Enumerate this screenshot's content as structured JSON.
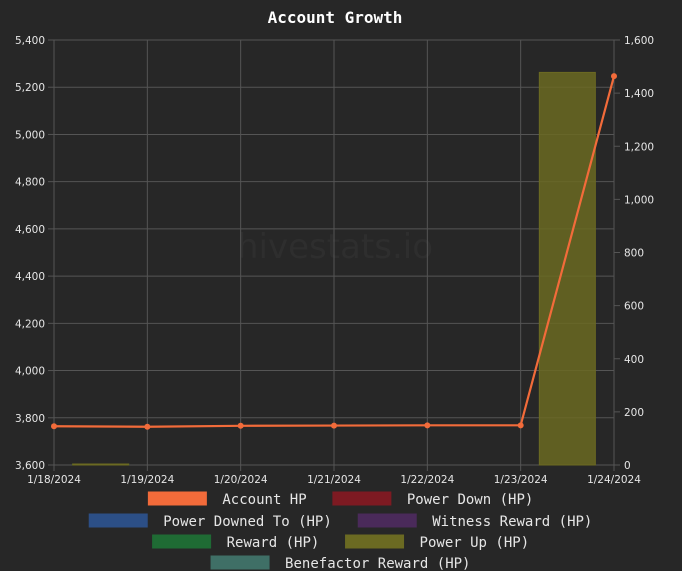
{
  "chart_data": {
    "type": "line",
    "title": "Account Growth",
    "watermark": "hivestats.io",
    "x": [
      "1/18/2024",
      "1/19/2024",
      "1/20/2024",
      "1/21/2024",
      "1/22/2024",
      "1/23/2024",
      "1/24/2024"
    ],
    "y_left": {
      "min": 3600,
      "max": 5400,
      "ticks": [
        "3,600",
        "3,800",
        "4,000",
        "4,200",
        "4,400",
        "4,600",
        "4,800",
        "5,000",
        "5,200",
        "5,400"
      ]
    },
    "y_right": {
      "min": 0,
      "max": 1600,
      "ticks": [
        "0",
        "200",
        "400",
        "600",
        "800",
        "1,000",
        "1,200",
        "1,400",
        "1,600"
      ]
    },
    "grid": true,
    "legend_position": "bottom",
    "series": [
      {
        "name": "Account HP",
        "color": "#f26b3a",
        "axis": "left",
        "type": "line",
        "values": [
          3764,
          3762,
          3766,
          3767,
          3768,
          3768,
          5247
        ]
      },
      {
        "name": "Power Down (HP)",
        "color": "#7d1a22",
        "axis": "right",
        "type": "bar",
        "values": [
          0,
          0,
          0,
          0,
          0,
          0,
          0
        ]
      },
      {
        "name": "Power Downed To (HP)",
        "color": "#2c4f86",
        "axis": "right",
        "type": "bar",
        "values": [
          0,
          0,
          0,
          0,
          0,
          0,
          0
        ]
      },
      {
        "name": "Witness Reward (HP)",
        "color": "#4a2a5a",
        "axis": "right",
        "type": "bar",
        "values": [
          0,
          0,
          0,
          0,
          0,
          0,
          0
        ]
      },
      {
        "name": "Reward (HP)",
        "color": "#1f6b34",
        "axis": "right",
        "type": "bar",
        "values": [
          0,
          0.4,
          0,
          0,
          0,
          0,
          0
        ]
      },
      {
        "name": "Power Up (HP)",
        "color": "#6b6a22",
        "axis": "right",
        "type": "bar",
        "values": [
          0,
          1,
          0,
          0,
          0,
          0,
          1478
        ]
      },
      {
        "name": "Benefactor Reward (HP)",
        "color": "#3f6f66",
        "axis": "right",
        "type": "bar",
        "values": [
          0,
          0,
          0,
          0,
          0,
          0,
          0
        ]
      }
    ]
  }
}
